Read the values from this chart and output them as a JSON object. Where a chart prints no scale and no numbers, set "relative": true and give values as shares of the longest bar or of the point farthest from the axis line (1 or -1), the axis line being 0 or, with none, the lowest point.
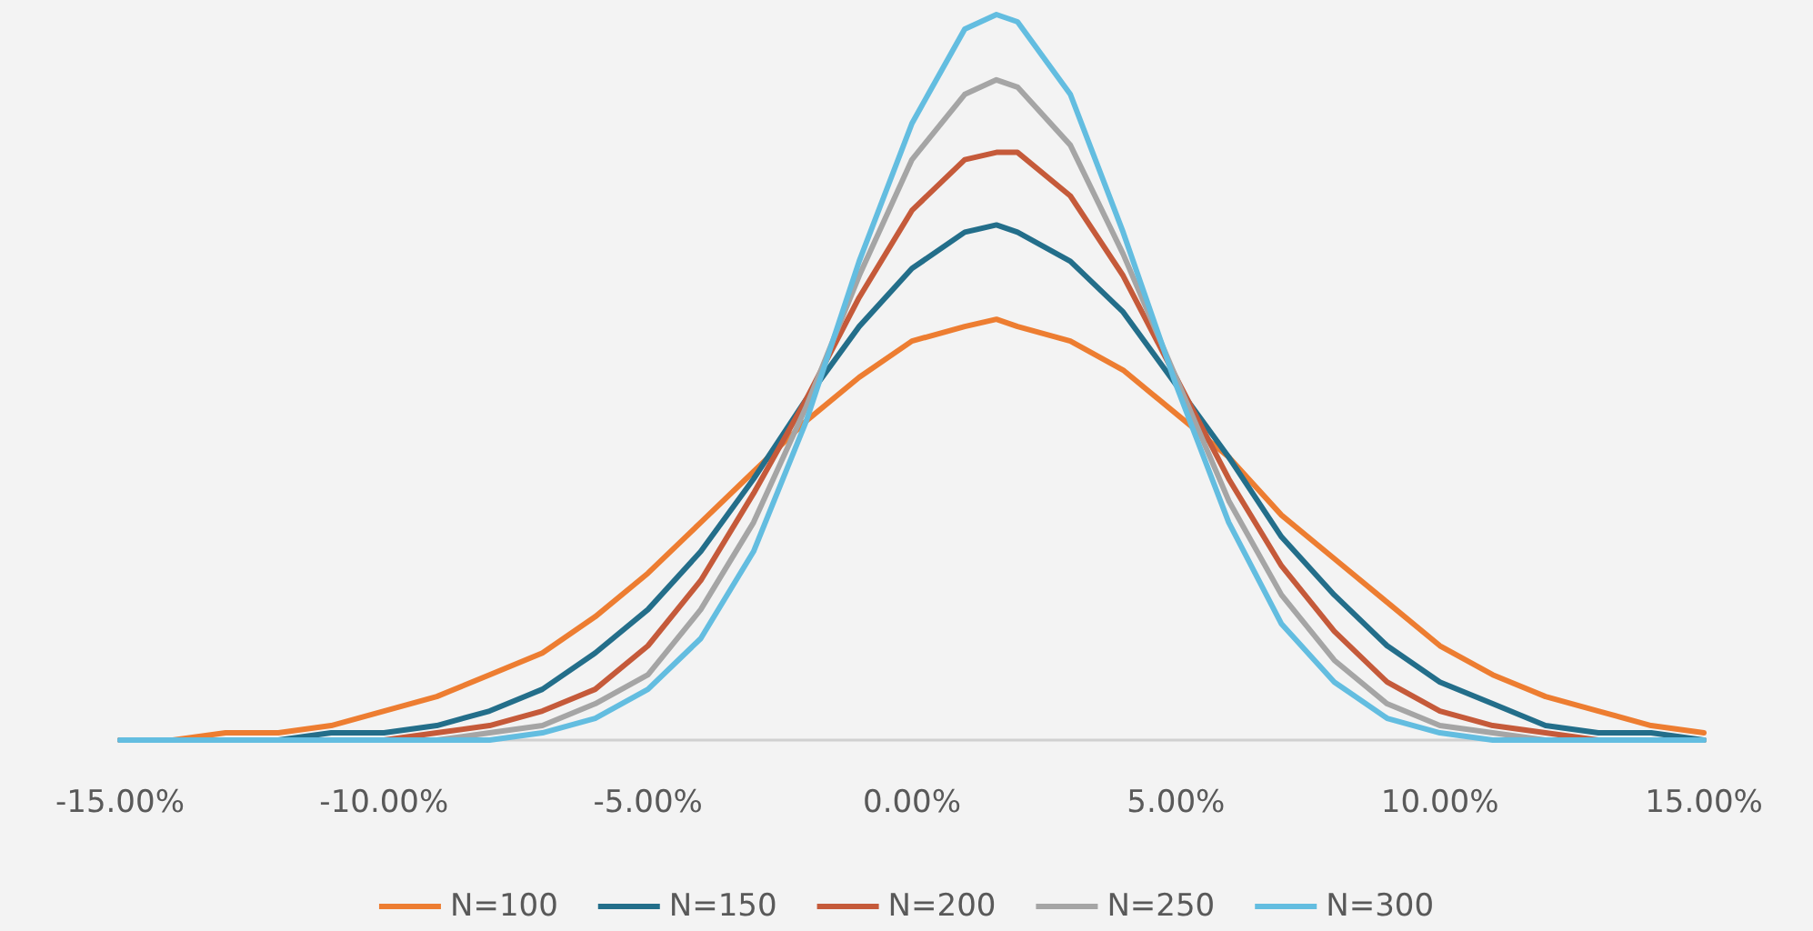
{
  "chart_data": {
    "type": "line",
    "relative": true,
    "x": [
      -15,
      -14,
      -13,
      -12,
      -11,
      -10,
      -9,
      -8,
      -7,
      -6,
      -5,
      -4,
      -3,
      -2,
      -1,
      0,
      1,
      1.6,
      2,
      3,
      4,
      5,
      6,
      7,
      8,
      9,
      10,
      11,
      12,
      13,
      14,
      15
    ],
    "xlim": [
      -15,
      15
    ],
    "xticks": [
      {
        "value": -15,
        "label": "-15.00%"
      },
      {
        "value": -10,
        "label": "-10.00%"
      },
      {
        "value": -5,
        "label": "-5.00%"
      },
      {
        "value": 0,
        "label": "0.00%"
      },
      {
        "value": 5,
        "label": "5.00%"
      },
      {
        "value": 10,
        "label": "10.00%"
      },
      {
        "value": 15,
        "label": "15.00%"
      }
    ],
    "series": [
      {
        "name": "N=100",
        "color": "#ed7d31",
        "values": [
          0,
          0,
          0.01,
          0.01,
          0.02,
          0.04,
          0.06,
          0.09,
          0.12,
          0.17,
          0.23,
          0.3,
          0.37,
          0.44,
          0.5,
          0.55,
          0.57,
          0.58,
          0.57,
          0.55,
          0.51,
          0.45,
          0.39,
          0.31,
          0.25,
          0.19,
          0.13,
          0.09,
          0.06,
          0.04,
          0.02,
          0.01
        ]
      },
      {
        "name": "N=150",
        "color": "#236e8a",
        "values": [
          0,
          0,
          0,
          0,
          0.01,
          0.01,
          0.02,
          0.04,
          0.07,
          0.12,
          0.18,
          0.26,
          0.36,
          0.47,
          0.57,
          0.65,
          0.7,
          0.71,
          0.7,
          0.66,
          0.59,
          0.49,
          0.39,
          0.28,
          0.2,
          0.13,
          0.08,
          0.05,
          0.02,
          0.01,
          0.01,
          0
        ]
      },
      {
        "name": "N=200",
        "color": "#c55a3a",
        "values": [
          0,
          0,
          0,
          0,
          0,
          0,
          0.01,
          0.02,
          0.04,
          0.07,
          0.13,
          0.22,
          0.34,
          0.47,
          0.61,
          0.73,
          0.8,
          0.81,
          0.81,
          0.75,
          0.64,
          0.5,
          0.36,
          0.24,
          0.15,
          0.08,
          0.04,
          0.02,
          0.01,
          0,
          0,
          0
        ]
      },
      {
        "name": "N=250",
        "color": "#a5a5a5",
        "values": [
          0,
          0,
          0,
          0,
          0,
          0,
          0,
          0.01,
          0.02,
          0.05,
          0.09,
          0.18,
          0.3,
          0.46,
          0.64,
          0.8,
          0.89,
          0.91,
          0.9,
          0.82,
          0.67,
          0.5,
          0.33,
          0.2,
          0.11,
          0.05,
          0.02,
          0.01,
          0,
          0,
          0,
          0
        ]
      },
      {
        "name": "N=300",
        "color": "#63bde0",
        "values": [
          0,
          0,
          0,
          0,
          0,
          0,
          0,
          0,
          0.01,
          0.03,
          0.07,
          0.14,
          0.26,
          0.44,
          0.66,
          0.85,
          0.98,
          1,
          0.99,
          0.89,
          0.7,
          0.49,
          0.3,
          0.16,
          0.08,
          0.03,
          0.01,
          0,
          0,
          0,
          0,
          0
        ]
      }
    ],
    "grid": false,
    "legend": "bottom",
    "marker": "none",
    "line_style": "solid"
  }
}
